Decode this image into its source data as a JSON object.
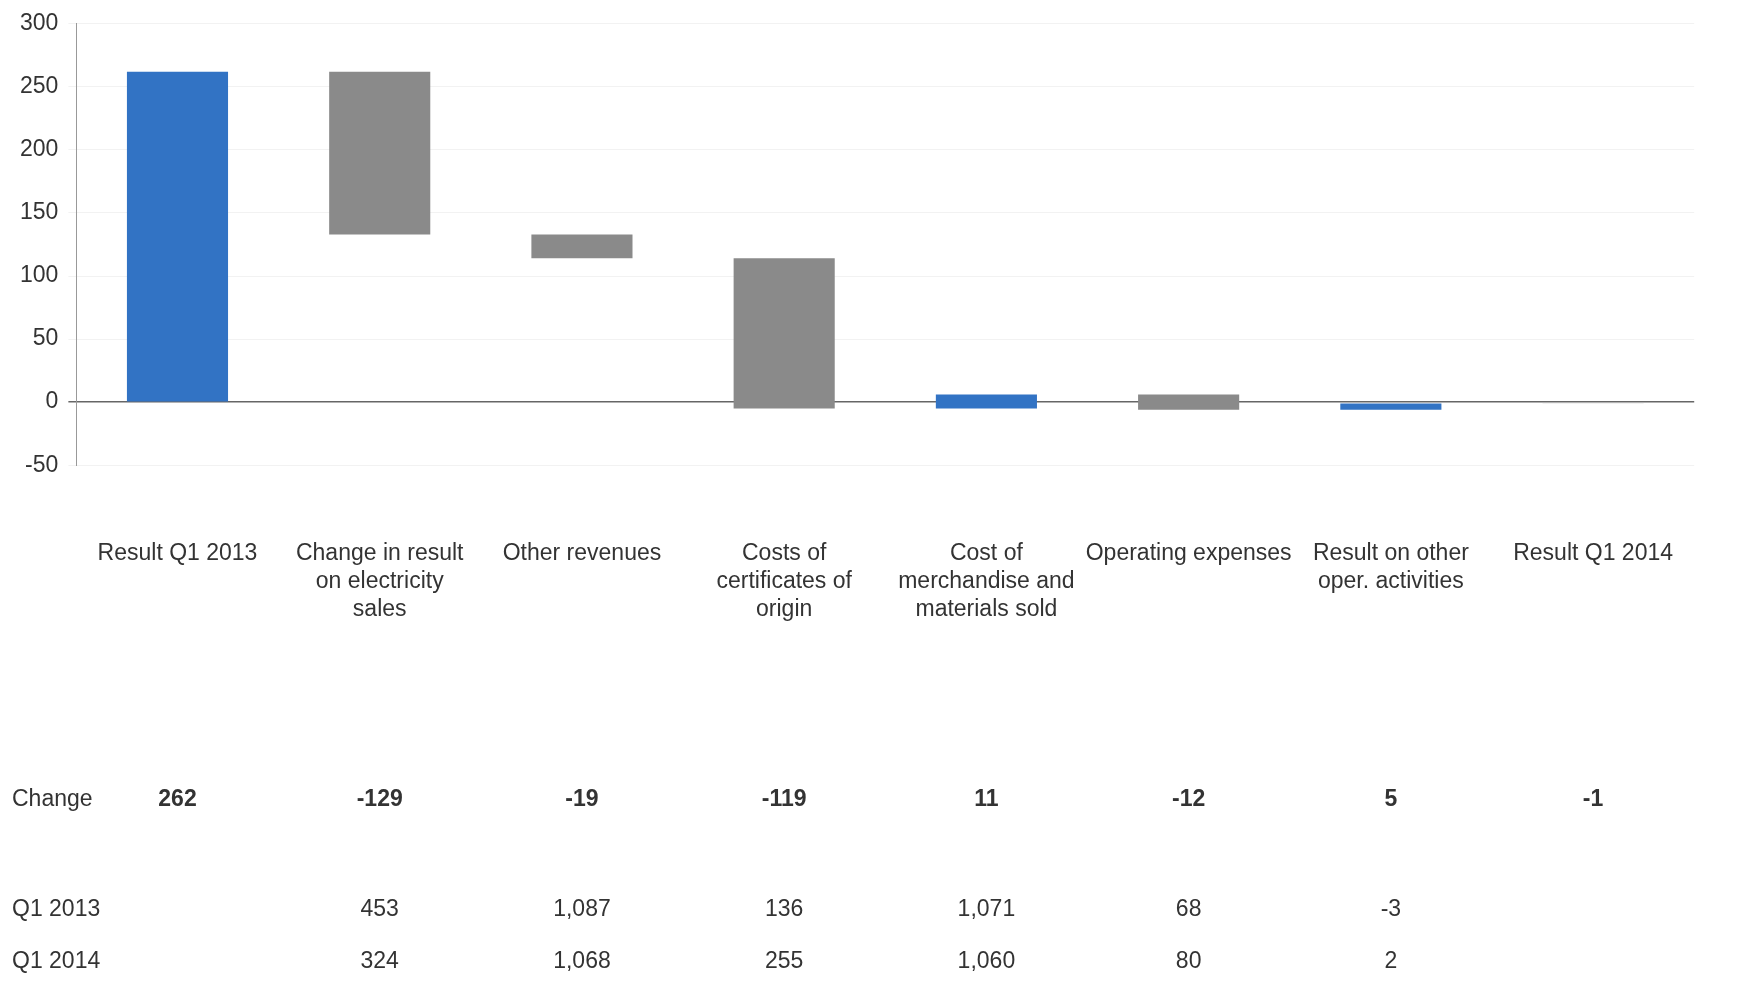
{
  "chart_data": {
    "type": "bar",
    "categories": [
      "Result Q1 2013",
      "Change in result on electricity sales",
      "Other revenues",
      "Costs of certificates of origin",
      "Cost of merchandise and materials sold",
      "Operating expenses",
      "Result on other oper. activities",
      "Result Q1 2014"
    ],
    "base": [
      0,
      262,
      133,
      114,
      -5,
      6,
      -6,
      0
    ],
    "values": [
      262,
      -129,
      -19,
      -119,
      11,
      -12,
      5,
      -1
    ],
    "colors": [
      "#3273c4",
      "#8a8a8a",
      "#8a8a8a",
      "#8a8a8a",
      "#3273c4",
      "#8a8a8a",
      "#3273c4",
      "#e6e6e6"
    ],
    "ylim": [
      -50,
      300
    ],
    "yticks": [
      -50,
      0,
      50,
      100,
      150,
      200,
      250,
      300
    ],
    "grid": "y",
    "legend": false,
    "value_labels": [
      "262",
      "-129",
      "-19",
      "-119",
      "11",
      "-12",
      "5",
      "-1"
    ],
    "annotations": [
      "Change",
      "Q1 2013",
      "453",
      "1,087",
      "136",
      "1,071",
      "68",
      "-3",
      "Q1 2014",
      "324",
      "1,068",
      "255",
      "1,060",
      "80",
      "2"
    ]
  }
}
